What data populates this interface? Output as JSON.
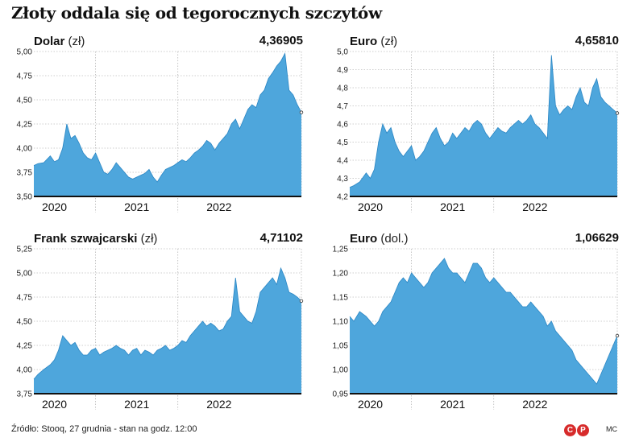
{
  "title": "Złoty oddala się od tegorocznych szczytów",
  "source": "Źródło: Stooq, 27 grudnia - stan na godz. 12:00",
  "logo_text": [
    "C",
    "P"
  ],
  "author": "MC",
  "colors": {
    "area": "#4ea6dc",
    "line": "#2a86c4",
    "axis": "#111111",
    "grid": "#9e9e9e"
  },
  "chart_data": [
    {
      "type": "area",
      "name": "Dolar",
      "unit": "(zł)",
      "last_value": "4,36905",
      "ylim": [
        3.5,
        5.0
      ],
      "yticks": [
        3.5,
        3.75,
        4.0,
        4.25,
        4.5,
        4.75,
        5.0
      ],
      "ytick_labels": [
        "3,50",
        "3,75",
        "4,00",
        "4,25",
        "4,50",
        "4,75",
        "5,00"
      ],
      "xlabels": [
        "2020",
        "2021",
        "2022"
      ],
      "x_range": [
        2019.75,
        2023.0
      ],
      "x": [
        2019.75,
        2019.8,
        2019.87,
        2019.95,
        2020.0,
        2020.05,
        2020.1,
        2020.15,
        2020.2,
        2020.25,
        2020.3,
        2020.35,
        2020.4,
        2020.45,
        2020.5,
        2020.55,
        2020.6,
        2020.65,
        2020.7,
        2020.75,
        2020.8,
        2020.85,
        2020.9,
        2020.95,
        2021.0,
        2021.05,
        2021.1,
        2021.15,
        2021.2,
        2021.25,
        2021.3,
        2021.35,
        2021.4,
        2021.45,
        2021.5,
        2021.55,
        2021.6,
        2021.65,
        2021.7,
        2021.75,
        2021.8,
        2021.85,
        2021.9,
        2021.95,
        2022.0,
        2022.05,
        2022.1,
        2022.15,
        2022.2,
        2022.25,
        2022.3,
        2022.35,
        2022.4,
        2022.45,
        2022.5,
        2022.55,
        2022.6,
        2022.65,
        2022.7,
        2022.75,
        2022.8,
        2022.85,
        2022.9,
        2022.95,
        2023.0
      ],
      "y": [
        3.82,
        3.84,
        3.85,
        3.92,
        3.86,
        3.88,
        4.0,
        4.25,
        4.1,
        4.13,
        4.05,
        3.95,
        3.9,
        3.88,
        3.95,
        3.85,
        3.75,
        3.73,
        3.78,
        3.85,
        3.8,
        3.75,
        3.7,
        3.68,
        3.7,
        3.72,
        3.74,
        3.78,
        3.7,
        3.65,
        3.72,
        3.78,
        3.8,
        3.82,
        3.85,
        3.88,
        3.86,
        3.9,
        3.95,
        3.98,
        4.02,
        4.08,
        4.05,
        3.98,
        4.05,
        4.1,
        4.15,
        4.25,
        4.3,
        4.2,
        4.3,
        4.4,
        4.45,
        4.42,
        4.55,
        4.6,
        4.72,
        4.78,
        4.85,
        4.9,
        4.98,
        4.6,
        4.55,
        4.45,
        4.37
      ]
    },
    {
      "type": "area",
      "name": "Euro",
      "unit": "(zł)",
      "last_value": "4,65810",
      "ylim": [
        4.2,
        5.0
      ],
      "yticks": [
        4.2,
        4.3,
        4.4,
        4.5,
        4.6,
        4.7,
        4.8,
        4.9,
        5.0
      ],
      "ytick_labels": [
        "4,2",
        "4,3",
        "4,4",
        "4,5",
        "4,6",
        "4,7",
        "4,8",
        "4,9",
        "5,0"
      ],
      "xlabels": [
        "2020",
        "2021",
        "2022"
      ],
      "x_range": [
        2019.75,
        2023.0
      ],
      "x": [
        2019.75,
        2019.8,
        2019.87,
        2019.95,
        2020.0,
        2020.05,
        2020.1,
        2020.15,
        2020.2,
        2020.25,
        2020.3,
        2020.35,
        2020.4,
        2020.45,
        2020.5,
        2020.55,
        2020.6,
        2020.65,
        2020.7,
        2020.75,
        2020.8,
        2020.85,
        2020.9,
        2020.95,
        2021.0,
        2021.05,
        2021.1,
        2021.15,
        2021.2,
        2021.25,
        2021.3,
        2021.35,
        2021.4,
        2021.45,
        2021.5,
        2021.55,
        2021.6,
        2021.65,
        2021.7,
        2021.75,
        2021.8,
        2021.85,
        2021.9,
        2021.95,
        2022.0,
        2022.05,
        2022.1,
        2022.15,
        2022.2,
        2022.25,
        2022.3,
        2022.35,
        2022.4,
        2022.45,
        2022.5,
        2022.55,
        2022.6,
        2022.65,
        2022.7,
        2022.75,
        2022.8,
        2022.85,
        2022.9,
        2022.95,
        2023.0
      ],
      "y": [
        4.25,
        4.26,
        4.28,
        4.33,
        4.3,
        4.35,
        4.5,
        4.6,
        4.55,
        4.58,
        4.5,
        4.45,
        4.42,
        4.45,
        4.48,
        4.4,
        4.42,
        4.45,
        4.5,
        4.55,
        4.58,
        4.52,
        4.48,
        4.5,
        4.55,
        4.52,
        4.55,
        4.58,
        4.56,
        4.6,
        4.62,
        4.6,
        4.55,
        4.52,
        4.55,
        4.58,
        4.56,
        4.55,
        4.58,
        4.6,
        4.62,
        4.6,
        4.62,
        4.65,
        4.6,
        4.58,
        4.55,
        4.52,
        4.98,
        4.7,
        4.65,
        4.68,
        4.7,
        4.68,
        4.75,
        4.8,
        4.72,
        4.7,
        4.8,
        4.85,
        4.75,
        4.72,
        4.7,
        4.68,
        4.66
      ]
    },
    {
      "type": "area",
      "name": "Frank szwajcarski",
      "unit": "(zł)",
      "last_value": "4,71102",
      "ylim": [
        3.75,
        5.25
      ],
      "yticks": [
        3.75,
        4.0,
        4.25,
        4.5,
        4.75,
        5.0,
        5.25
      ],
      "ytick_labels": [
        "3,75",
        "4,00",
        "4,25",
        "4,50",
        "4,75",
        "5,00",
        "5,25"
      ],
      "xlabels": [
        "2020",
        "2021",
        "2022"
      ],
      "x_range": [
        2019.75,
        2023.0
      ],
      "x": [
        2019.75,
        2019.8,
        2019.87,
        2019.95,
        2020.0,
        2020.05,
        2020.1,
        2020.15,
        2020.2,
        2020.25,
        2020.3,
        2020.35,
        2020.4,
        2020.45,
        2020.5,
        2020.55,
        2020.6,
        2020.65,
        2020.7,
        2020.75,
        2020.8,
        2020.85,
        2020.9,
        2020.95,
        2021.0,
        2021.05,
        2021.1,
        2021.15,
        2021.2,
        2021.25,
        2021.3,
        2021.35,
        2021.4,
        2021.45,
        2021.5,
        2021.55,
        2021.6,
        2021.65,
        2021.7,
        2021.75,
        2021.8,
        2021.85,
        2021.9,
        2021.95,
        2022.0,
        2022.05,
        2022.1,
        2022.15,
        2022.2,
        2022.25,
        2022.3,
        2022.35,
        2022.4,
        2022.45,
        2022.5,
        2022.55,
        2022.6,
        2022.65,
        2022.7,
        2022.75,
        2022.8,
        2022.85,
        2022.9,
        2022.95,
        2023.0
      ],
      "y": [
        3.9,
        3.95,
        4.0,
        4.05,
        4.1,
        4.2,
        4.35,
        4.3,
        4.25,
        4.28,
        4.2,
        4.15,
        4.15,
        4.2,
        4.22,
        4.15,
        4.18,
        4.2,
        4.22,
        4.25,
        4.22,
        4.2,
        4.15,
        4.2,
        4.22,
        4.15,
        4.2,
        4.18,
        4.15,
        4.2,
        4.22,
        4.25,
        4.2,
        4.22,
        4.25,
        4.3,
        4.28,
        4.35,
        4.4,
        4.45,
        4.5,
        4.45,
        4.48,
        4.45,
        4.4,
        4.42,
        4.5,
        4.55,
        4.95,
        4.6,
        4.55,
        4.5,
        4.48,
        4.6,
        4.8,
        4.85,
        4.9,
        4.95,
        4.88,
        5.05,
        4.95,
        4.8,
        4.78,
        4.75,
        4.71
      ]
    },
    {
      "type": "area",
      "name": "Euro",
      "unit": "(dol.)",
      "last_value": "1,06629",
      "ylim": [
        0.95,
        1.25
      ],
      "yticks": [
        0.95,
        1.0,
        1.05,
        1.1,
        1.15,
        1.2,
        1.25
      ],
      "ytick_labels": [
        "0,95",
        "1,00",
        "1,05",
        "1,10",
        "1,15",
        "1,20",
        "1,25"
      ],
      "xlabels": [
        "2020",
        "2021",
        "2022"
      ],
      "x_range": [
        2019.75,
        2023.0
      ],
      "x": [
        2019.75,
        2019.8,
        2019.87,
        2019.95,
        2020.0,
        2020.05,
        2020.1,
        2020.15,
        2020.2,
        2020.25,
        2020.3,
        2020.35,
        2020.4,
        2020.45,
        2020.5,
        2020.55,
        2020.6,
        2020.65,
        2020.7,
        2020.75,
        2020.8,
        2020.85,
        2020.9,
        2020.95,
        2021.0,
        2021.05,
        2021.1,
        2021.15,
        2021.2,
        2021.25,
        2021.3,
        2021.35,
        2021.4,
        2021.45,
        2021.5,
        2021.55,
        2021.6,
        2021.65,
        2021.7,
        2021.75,
        2021.8,
        2021.85,
        2021.9,
        2021.95,
        2022.0,
        2022.05,
        2022.1,
        2022.15,
        2022.2,
        2022.25,
        2022.3,
        2022.35,
        2022.4,
        2022.45,
        2022.5,
        2022.55,
        2022.6,
        2022.65,
        2022.7,
        2022.75,
        2022.8,
        2022.85,
        2022.9,
        2022.95,
        2023.0
      ],
      "y": [
        1.11,
        1.1,
        1.12,
        1.11,
        1.1,
        1.09,
        1.1,
        1.12,
        1.13,
        1.14,
        1.16,
        1.18,
        1.19,
        1.18,
        1.2,
        1.19,
        1.18,
        1.17,
        1.18,
        1.2,
        1.21,
        1.22,
        1.23,
        1.21,
        1.2,
        1.2,
        1.19,
        1.18,
        1.2,
        1.22,
        1.22,
        1.21,
        1.19,
        1.18,
        1.19,
        1.18,
        1.17,
        1.16,
        1.16,
        1.15,
        1.14,
        1.13,
        1.13,
        1.14,
        1.13,
        1.12,
        1.11,
        1.09,
        1.1,
        1.08,
        1.07,
        1.06,
        1.05,
        1.04,
        1.02,
        1.01,
        1.0,
        0.99,
        0.98,
        0.97,
        0.99,
        1.01,
        1.03,
        1.05,
        1.07
      ]
    }
  ]
}
